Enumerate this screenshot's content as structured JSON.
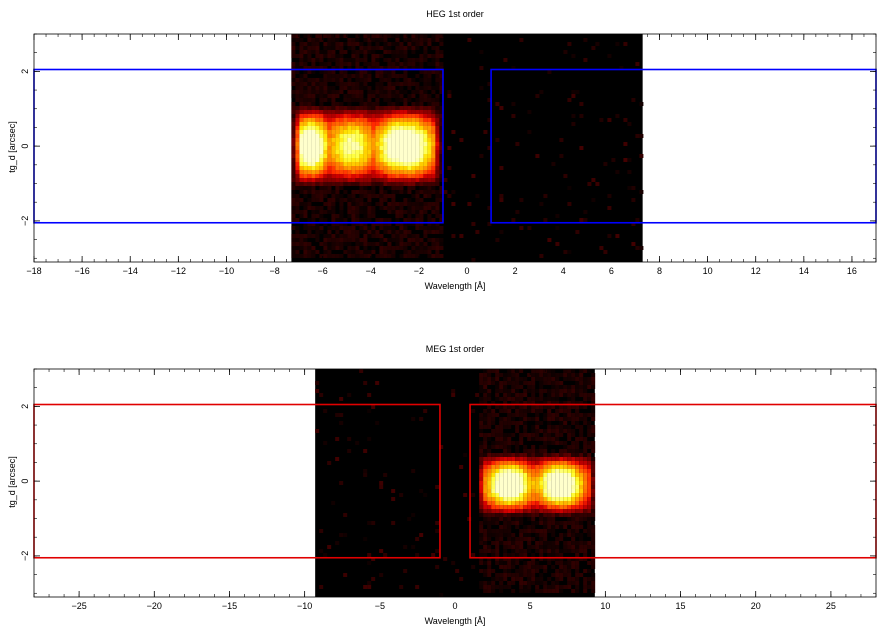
{
  "chart_data": [
    {
      "type": "heatmap",
      "title": "HEG 1st order",
      "xlabel": "Wavelength [Å]",
      "ylabel": "tg_d [arcsec]",
      "xlim": [
        -18,
        17
      ],
      "ylim": [
        -3.1,
        3.0
      ],
      "x_ticks": [
        -18,
        -16,
        -14,
        -12,
        -10,
        -8,
        -6,
        -4,
        -2,
        0,
        2,
        4,
        6,
        8,
        10,
        12,
        14,
        16
      ],
      "y_ticks": [
        -2,
        0,
        2
      ],
      "x_tick_labels": [
        "−18",
        "−16",
        "−14",
        "−12",
        "−10",
        "−8",
        "−6",
        "−4",
        "−2",
        "0",
        "2",
        "4",
        "6",
        "8",
        "10",
        "12",
        "14",
        "16"
      ],
      "y_tick_labels": [
        "−2",
        "0",
        "2"
      ],
      "grid": false,
      "colormap": "heat",
      "image_extent": {
        "x": [
          -7.3,
          7.3
        ],
        "y": [
          -3.1,
          3.0
        ]
      },
      "emission_band": {
        "y_center": 0.0,
        "y_halfwidth": 1.1
      },
      "bright_spots": [
        {
          "x": -6.5,
          "width": 1.0,
          "intensity": 1.0
        },
        {
          "x": -2.6,
          "width": 1.6,
          "intensity": 1.0
        },
        {
          "x": -4.8,
          "width": 1.4,
          "intensity": 0.8
        }
      ],
      "emission_x_range": [
        -7.3,
        -1.0
      ],
      "regions": [
        {
          "x": [
            -18,
            -1.0
          ],
          "y": [
            -2.05,
            2.05
          ]
        },
        {
          "x": [
            1.0,
            17
          ],
          "y": [
            -2.05,
            2.05
          ]
        }
      ],
      "region_color": "#0000ff"
    },
    {
      "type": "heatmap",
      "title": "MEG 1st order",
      "xlabel": "Wavelength [Å]",
      "ylabel": "tg_d [arcsec]",
      "xlim": [
        -28,
        28
      ],
      "ylim": [
        -3.1,
        3.0
      ],
      "x_ticks": [
        -25,
        -20,
        -15,
        -10,
        -5,
        0,
        5,
        10,
        15,
        20,
        25
      ],
      "y_ticks": [
        -2,
        0,
        2
      ],
      "x_tick_labels": [
        "−25",
        "−20",
        "−15",
        "−10",
        "−5",
        "0",
        "5",
        "10",
        "15",
        "20",
        "25"
      ],
      "y_tick_labels": [
        "−2",
        "0",
        "2"
      ],
      "grid": false,
      "colormap": "heat",
      "image_extent": {
        "x": [
          -9.3,
          9.3
        ],
        "y": [
          -3.1,
          3.0
        ]
      },
      "emission_band": {
        "y_center": -0.1,
        "y_halfwidth": 0.85
      },
      "bright_spots": [
        {
          "x": 3.6,
          "width": 2.0,
          "intensity": 1.0
        },
        {
          "x": 7.0,
          "width": 2.0,
          "intensity": 1.0
        },
        {
          "x": 5.3,
          "width": 1.2,
          "intensity": 0.6
        }
      ],
      "emission_x_range": [
        1.5,
        9.3
      ],
      "regions": [
        {
          "x": [
            -28,
            -1.0
          ],
          "y": [
            -2.05,
            2.05
          ]
        },
        {
          "x": [
            1.0,
            28
          ],
          "y": [
            -2.05,
            2.05
          ]
        }
      ],
      "region_color": "#e00000"
    }
  ]
}
